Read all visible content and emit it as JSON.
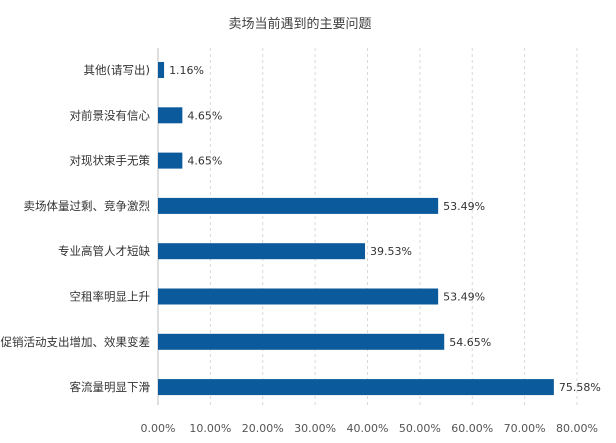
{
  "chart_data": {
    "type": "bar",
    "orientation": "horizontal",
    "title": "卖场当前遇到的主要问题",
    "categories": [
      "其他(请写出)",
      "对前景没有信心",
      "对现状束手无策",
      "卖场体量过剩、竞争激烈",
      "专业高管人才短缺",
      "空租率明显上升",
      "促销活动支出增加、效果变差",
      "客流量明显下滑"
    ],
    "values": [
      1.16,
      4.65,
      4.65,
      53.49,
      39.53,
      53.49,
      54.65,
      75.58
    ],
    "value_labels": [
      "1.16%",
      "4.65%",
      "4.65%",
      "53.49%",
      "39.53%",
      "53.49%",
      "54.65%",
      "75.58%"
    ],
    "xlim": [
      0,
      80
    ],
    "x_ticks": [
      0,
      10,
      20,
      30,
      40,
      50,
      60,
      70,
      80
    ],
    "x_tick_labels": [
      "0.00%",
      "10.00%",
      "20.00%",
      "30.00%",
      "40.00%",
      "50.00%",
      "60.00%",
      "70.00%",
      "80.00%"
    ],
    "xlabel": "",
    "ylabel": "",
    "bar_color": "#0a5a9c",
    "grid": true,
    "legend": "none"
  }
}
